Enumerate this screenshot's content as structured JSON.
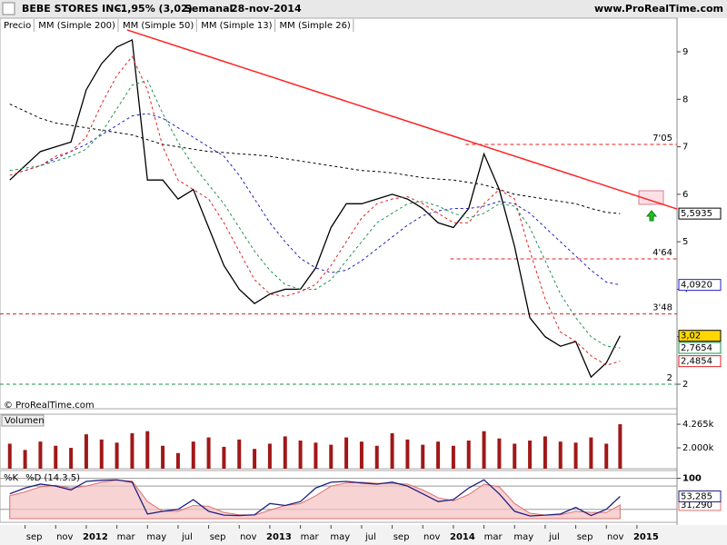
{
  "header": {
    "symbol": "BEBE STORES INC.",
    "change": "-1,95% (3,02)",
    "period": "Semanal",
    "date": "28-nov-2014",
    "site": "www.ProRealTime.com"
  },
  "chart_data": [
    {
      "type": "line",
      "annotation": "© ProRealTime.com",
      "x": [
        -5,
        -4,
        -3,
        -2,
        -1,
        0,
        1,
        2,
        3,
        4,
        5,
        6,
        7,
        8,
        9,
        10,
        11,
        12,
        13,
        14,
        15,
        16,
        17,
        18,
        19,
        20,
        21,
        22,
        23,
        24,
        25,
        26,
        27,
        28,
        29,
        30,
        31,
        32,
        33,
        34,
        34.9
      ],
      "xlim": [
        -5.64,
        38.62
      ],
      "ylim": [
        1.484,
        9.708
      ],
      "yticks": [
        2,
        3,
        4,
        5,
        6,
        7,
        8,
        9
      ],
      "series": [
        {
          "name": "Precio",
          "color": "#000000",
          "style": "solid",
          "last_value": 3.02,
          "last_label": "3,02",
          "last_bg": "#ffd700",
          "values": [
            6.3,
            6.6,
            6.9,
            7.0,
            7.1,
            8.2,
            8.75,
            9.1,
            9.25,
            6.3,
            6.3,
            5.9,
            6.1,
            5.3,
            4.5,
            4.0,
            3.7,
            3.9,
            4.0,
            4.0,
            4.45,
            5.3,
            5.8,
            5.8,
            5.9,
            6.0,
            5.9,
            5.7,
            5.4,
            5.3,
            5.7,
            6.85,
            6.1,
            4.9,
            3.4,
            3.0,
            2.8,
            2.9,
            2.15,
            2.45,
            3.02
          ]
        },
        {
          "name": "MM (Simple 200)",
          "color": "#000000",
          "style": "dashed",
          "last_value": 5.5935,
          "last_label": "5,5935",
          "last_bg": "#ffffff",
          "values": [
            7.9,
            7.75,
            7.6,
            7.5,
            7.45,
            7.4,
            7.35,
            7.3,
            7.25,
            7.15,
            7.05,
            7.0,
            6.95,
            6.9,
            6.88,
            6.85,
            6.83,
            6.8,
            6.75,
            6.7,
            6.65,
            6.6,
            6.55,
            6.5,
            6.48,
            6.45,
            6.4,
            6.35,
            6.32,
            6.3,
            6.25,
            6.2,
            6.1,
            6.0,
            5.95,
            5.9,
            5.85,
            5.8,
            5.7,
            5.62,
            5.5935
          ]
        },
        {
          "name": "MM (Simple 50)",
          "color": "#2020c0",
          "style": "dashed",
          "last_value": 4.092,
          "last_label": "4,0920",
          "last_bg": "#ffffff",
          "values": [
            null,
            6.5,
            6.6,
            6.75,
            6.9,
            7.05,
            7.25,
            7.45,
            7.65,
            7.7,
            7.6,
            7.4,
            7.2,
            7.0,
            6.8,
            6.4,
            5.9,
            5.4,
            5.0,
            4.65,
            4.45,
            4.35,
            4.4,
            4.6,
            4.85,
            5.1,
            5.35,
            5.55,
            5.65,
            5.7,
            5.7,
            5.75,
            5.85,
            5.8,
            5.6,
            5.3,
            5.0,
            4.7,
            4.4,
            4.15,
            4.092
          ]
        },
        {
          "name": "MM (Simple 13)",
          "color": "#e02020",
          "style": "dashed",
          "last_value": 2.4854,
          "last_label": "2,4854",
          "last_bg": "#ffffff",
          "values": [
            6.4,
            6.5,
            6.6,
            6.8,
            6.9,
            7.2,
            7.9,
            8.5,
            8.9,
            8.2,
            7.0,
            6.3,
            6.1,
            5.9,
            5.4,
            4.8,
            4.2,
            3.9,
            3.85,
            3.95,
            4.1,
            4.5,
            5.0,
            5.5,
            5.8,
            5.9,
            5.95,
            5.8,
            5.6,
            5.4,
            5.4,
            5.8,
            6.1,
            5.9,
            4.8,
            3.8,
            3.1,
            2.9,
            2.6,
            2.4,
            2.4854
          ]
        },
        {
          "name": "MM (Simple 26)",
          "color": "#209050",
          "style": "dashed",
          "last_value": 2.7654,
          "last_label": "2,7654",
          "last_bg": "#ffffff",
          "values": [
            6.5,
            6.55,
            6.6,
            6.7,
            6.8,
            6.95,
            7.3,
            7.8,
            8.3,
            8.4,
            7.7,
            7.1,
            6.6,
            6.2,
            5.8,
            5.3,
            4.8,
            4.4,
            4.1,
            4.0,
            4.0,
            4.2,
            4.6,
            5.0,
            5.4,
            5.6,
            5.8,
            5.85,
            5.75,
            5.6,
            5.5,
            5.6,
            5.8,
            5.75,
            5.3,
            4.6,
            3.9,
            3.4,
            3.0,
            2.8,
            2.7654
          ]
        }
      ],
      "levels": [
        {
          "value": 7.05,
          "label": "7'05",
          "color": "#e02020",
          "x0": 24.8
        },
        {
          "value": 4.64,
          "label": "4'64",
          "color": "#e02020",
          "x0": 23.8
        },
        {
          "value": 3.48,
          "label": "3'48",
          "color": "#e02020",
          "x0": -5.64
        },
        {
          "value": 2,
          "label": "2",
          "color": "#209050",
          "x0": -5.64
        }
      ],
      "trendline": {
        "color": "#ff2020",
        "x": [
          2.67,
          38.62
        ],
        "y": [
          9.46,
          5.69
        ]
      }
    },
    {
      "type": "bar",
      "title": "Volumen",
      "color": "#a01818",
      "x": [
        -5,
        -4,
        -3,
        -2,
        -1,
        0,
        1,
        2,
        3,
        4,
        5,
        6,
        7,
        8,
        9,
        10,
        11,
        12,
        13,
        14,
        15,
        16,
        17,
        18,
        19,
        20,
        21,
        22,
        23,
        24,
        25,
        26,
        27,
        28,
        29,
        30,
        31,
        32,
        33,
        34,
        34.9
      ],
      "xlim": [
        -5.64,
        38.62
      ],
      "ylim": [
        0,
        4880
      ],
      "yticks": [
        {
          "value": 4265,
          "label": "4.265k"
        },
        {
          "value": 2000,
          "label": "2.000k"
        }
      ],
      "values": [
        2400,
        1800,
        2600,
        2200,
        2000,
        3300,
        2800,
        2500,
        3400,
        3600,
        2200,
        1500,
        2600,
        3000,
        2100,
        2800,
        1900,
        2400,
        3100,
        2700,
        2500,
        2300,
        3000,
        2600,
        2200,
        3400,
        2800,
        2300,
        2600,
        2200,
        2700,
        3600,
        2900,
        2400,
        2700,
        3100,
        2600,
        2500,
        3000,
        2400,
        4265
      ]
    },
    {
      "type": "line",
      "x": [
        -5,
        -4,
        -3,
        -2,
        -1,
        0,
        1,
        2,
        3,
        4,
        5,
        6,
        7,
        8,
        9,
        10,
        11,
        12,
        13,
        14,
        15,
        16,
        17,
        18,
        19,
        20,
        21,
        22,
        23,
        24,
        25,
        26,
        27,
        28,
        29,
        30,
        31,
        32,
        33,
        34,
        34.9
      ],
      "xlim": [
        -5.64,
        38.62
      ],
      "ylim": [
        -4,
        106
      ],
      "yticks": [
        100
      ],
      "guides": [
        20,
        80
      ],
      "xticks": [
        {
          "value": -4,
          "label": "sep"
        },
        {
          "value": -2,
          "label": "nov"
        },
        {
          "value": 0,
          "label": "2012"
        },
        {
          "value": 2,
          "label": "mar"
        },
        {
          "value": 4,
          "label": "may"
        },
        {
          "value": 6,
          "label": "jul"
        },
        {
          "value": 8,
          "label": "sep"
        },
        {
          "value": 10,
          "label": "nov"
        },
        {
          "value": 12,
          "label": "2013"
        },
        {
          "value": 14,
          "label": "mar"
        },
        {
          "value": 16,
          "label": "may"
        },
        {
          "value": 18,
          "label": "jul"
        },
        {
          "value": 20,
          "label": "sep"
        },
        {
          "value": 22,
          "label": "nov"
        },
        {
          "value": 24,
          "label": "2014"
        },
        {
          "value": 26,
          "label": "mar"
        },
        {
          "value": 28,
          "label": "may"
        },
        {
          "value": 30,
          "label": "jul"
        },
        {
          "value": 32,
          "label": "sep"
        },
        {
          "value": 34,
          "label": "nov"
        },
        {
          "value": 36,
          "label": "2015"
        }
      ],
      "series": [
        {
          "name": "%D (14.3.5)",
          "color": "#e07070",
          "style": "area",
          "last_value": 31.29,
          "last_label": "31,290",
          "last_bg": "#ffffff",
          "values": [
            55,
            65,
            78,
            82,
            75,
            80,
            90,
            95,
            93,
            40,
            15,
            15,
            30,
            28,
            12,
            6,
            5,
            18,
            30,
            35,
            55,
            80,
            88,
            90,
            87,
            87,
            85,
            70,
            50,
            42,
            58,
            85,
            78,
            35,
            10,
            5,
            6,
            15,
            12,
            12,
            31.29
          ]
        },
        {
          "name": "%K",
          "color": "#202080",
          "style": "solid",
          "last_value": 53.285,
          "last_label": "53,285",
          "last_bg": "#ffffff",
          "values": [
            60,
            75,
            85,
            80,
            70,
            92,
            95,
            96,
            90,
            8,
            15,
            20,
            45,
            15,
            5,
            4,
            6,
            35,
            30,
            40,
            75,
            90,
            92,
            88,
            85,
            90,
            80,
            60,
            40,
            45,
            75,
            96,
            60,
            15,
            3,
            5,
            8,
            25,
            4,
            20,
            53.285
          ]
        }
      ]
    }
  ]
}
